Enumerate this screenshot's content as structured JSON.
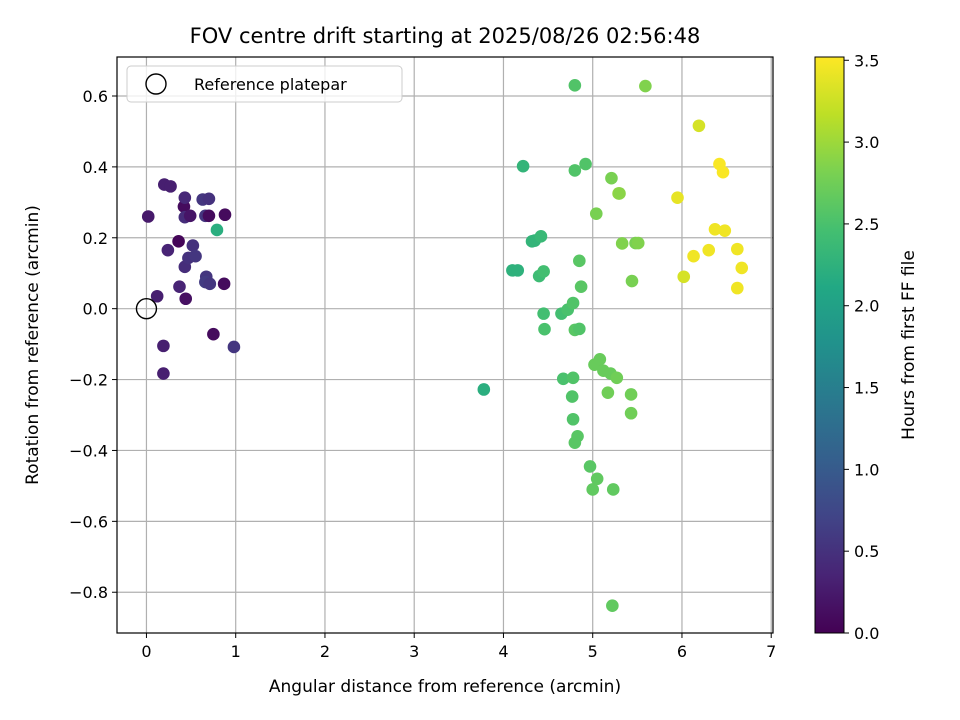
{
  "chart_data": {
    "type": "scatter",
    "title": "FOV centre drift starting at 2025/08/26 02:56:48",
    "xlabel": "Angular distance from reference (arcmin)",
    "ylabel": "Rotation from reference (arcmin)",
    "xlim": [
      -0.33,
      7.02
    ],
    "ylim": [
      -0.915,
      0.71
    ],
    "xticks": [
      "0",
      "1",
      "2",
      "3",
      "4",
      "5",
      "6",
      "7"
    ],
    "yticks": [
      "−0.8",
      "−0.6",
      "−0.4",
      "−0.2",
      "0.0",
      "0.2",
      "0.4",
      "0.6"
    ],
    "xtick_values": [
      0,
      1,
      2,
      3,
      4,
      5,
      6,
      7
    ],
    "ytick_values": [
      -0.8,
      -0.6,
      -0.4,
      -0.2,
      0.0,
      0.2,
      0.4,
      0.6
    ],
    "grid": true,
    "colormap": "viridis",
    "colorbar": {
      "label": "Hours from first FF file",
      "range": [
        0.0,
        3.52
      ],
      "ticks": [
        "0.0",
        "0.5",
        "1.0",
        "1.5",
        "2.0",
        "2.5",
        "3.0",
        "3.5"
      ],
      "tick_values": [
        0.0,
        0.5,
        1.0,
        1.5,
        2.0,
        2.5,
        3.0,
        3.5
      ]
    },
    "legend": {
      "entries": [
        "Reference platepar"
      ],
      "placement": "top-left"
    },
    "reference_point": {
      "x": 0,
      "y": 0
    },
    "points": [
      {
        "x": 0.02,
        "y": 0.26,
        "h": 0.25
      },
      {
        "x": 0.12,
        "y": 0.035,
        "h": 0.3
      },
      {
        "x": 0.2,
        "y": 0.35,
        "h": 0.3
      },
      {
        "x": 0.27,
        "y": 0.345,
        "h": 0.3
      },
      {
        "x": 0.24,
        "y": 0.165,
        "h": 0.35
      },
      {
        "x": 0.19,
        "y": -0.105,
        "h": 0.3
      },
      {
        "x": 0.19,
        "y": -0.183,
        "h": 0.3
      },
      {
        "x": 0.36,
        "y": 0.19,
        "h": 0.05
      },
      {
        "x": 0.37,
        "y": 0.062,
        "h": 0.35
      },
      {
        "x": 0.42,
        "y": 0.288,
        "h": 0.1
      },
      {
        "x": 0.43,
        "y": 0.313,
        "h": 0.4
      },
      {
        "x": 0.43,
        "y": 0.258,
        "h": 0.45
      },
      {
        "x": 0.49,
        "y": 0.262,
        "h": 0.2
      },
      {
        "x": 0.43,
        "y": 0.118,
        "h": 0.45
      },
      {
        "x": 0.47,
        "y": 0.143,
        "h": 0.5
      },
      {
        "x": 0.52,
        "y": 0.178,
        "h": 0.5
      },
      {
        "x": 0.55,
        "y": 0.148,
        "h": 0.55
      },
      {
        "x": 0.44,
        "y": 0.028,
        "h": 0.15
      },
      {
        "x": 0.63,
        "y": 0.308,
        "h": 0.55
      },
      {
        "x": 0.7,
        "y": 0.31,
        "h": 0.5
      },
      {
        "x": 0.66,
        "y": 0.262,
        "h": 0.55
      },
      {
        "x": 0.7,
        "y": 0.262,
        "h": 0.1
      },
      {
        "x": 0.67,
        "y": 0.09,
        "h": 0.55
      },
      {
        "x": 0.66,
        "y": 0.075,
        "h": 0.6
      },
      {
        "x": 0.71,
        "y": 0.07,
        "h": 0.55
      },
      {
        "x": 0.75,
        "y": -0.072,
        "h": 0.1
      },
      {
        "x": 0.79,
        "y": 0.222,
        "h": 2.2
      },
      {
        "x": 0.88,
        "y": 0.265,
        "h": 0.1
      },
      {
        "x": 0.87,
        "y": 0.07,
        "h": 0.1
      },
      {
        "x": 0.98,
        "y": -0.108,
        "h": 0.55
      },
      {
        "x": 3.78,
        "y": -0.228,
        "h": 2.2
      },
      {
        "x": 4.1,
        "y": 0.108,
        "h": 2.25
      },
      {
        "x": 4.16,
        "y": 0.108,
        "h": 2.25
      },
      {
        "x": 4.22,
        "y": 0.402,
        "h": 2.3
      },
      {
        "x": 4.32,
        "y": 0.19,
        "h": 2.3
      },
      {
        "x": 4.35,
        "y": 0.192,
        "h": 2.3
      },
      {
        "x": 4.42,
        "y": 0.204,
        "h": 2.35
      },
      {
        "x": 4.4,
        "y": 0.092,
        "h": 2.4
      },
      {
        "x": 4.45,
        "y": 0.105,
        "h": 2.45
      },
      {
        "x": 4.45,
        "y": -0.014,
        "h": 2.45
      },
      {
        "x": 4.46,
        "y": -0.058,
        "h": 2.5
      },
      {
        "x": 4.65,
        "y": -0.014,
        "h": 2.45
      },
      {
        "x": 4.72,
        "y": -0.003,
        "h": 2.5
      },
      {
        "x": 4.78,
        "y": 0.016,
        "h": 2.55
      },
      {
        "x": 4.67,
        "y": -0.198,
        "h": 2.5
      },
      {
        "x": 4.78,
        "y": -0.195,
        "h": 2.55
      },
      {
        "x": 4.77,
        "y": -0.248,
        "h": 2.55
      },
      {
        "x": 4.78,
        "y": -0.312,
        "h": 2.55
      },
      {
        "x": 4.8,
        "y": -0.06,
        "h": 2.6
      },
      {
        "x": 4.85,
        "y": -0.057,
        "h": 2.55
      },
      {
        "x": 4.8,
        "y": 0.63,
        "h": 2.55
      },
      {
        "x": 4.8,
        "y": 0.39,
        "h": 2.55
      },
      {
        "x": 4.92,
        "y": 0.408,
        "h": 2.55
      },
      {
        "x": 4.85,
        "y": 0.135,
        "h": 2.6
      },
      {
        "x": 4.87,
        "y": 0.062,
        "h": 2.6
      },
      {
        "x": 4.83,
        "y": -0.36,
        "h": 2.6
      },
      {
        "x": 4.8,
        "y": -0.378,
        "h": 2.6
      },
      {
        "x": 4.97,
        "y": -0.445,
        "h": 2.6
      },
      {
        "x": 5.05,
        "y": -0.48,
        "h": 2.65
      },
      {
        "x": 5.0,
        "y": -0.51,
        "h": 2.65
      },
      {
        "x": 5.23,
        "y": -0.51,
        "h": 2.65
      },
      {
        "x": 5.22,
        "y": -0.838,
        "h": 2.65
      },
      {
        "x": 5.02,
        "y": -0.158,
        "h": 2.7
      },
      {
        "x": 5.08,
        "y": -0.143,
        "h": 2.7
      },
      {
        "x": 5.12,
        "y": -0.175,
        "h": 2.7
      },
      {
        "x": 5.2,
        "y": -0.183,
        "h": 2.7
      },
      {
        "x": 5.27,
        "y": -0.195,
        "h": 2.75
      },
      {
        "x": 5.17,
        "y": -0.237,
        "h": 2.75
      },
      {
        "x": 5.43,
        "y": -0.242,
        "h": 2.75
      },
      {
        "x": 5.43,
        "y": -0.295,
        "h": 2.75
      },
      {
        "x": 5.04,
        "y": 0.268,
        "h": 2.8
      },
      {
        "x": 5.21,
        "y": 0.368,
        "h": 2.8
      },
      {
        "x": 5.29,
        "y": 0.325,
        "h": 2.95
      },
      {
        "x": 5.3,
        "y": 0.325,
        "h": 2.9
      },
      {
        "x": 5.33,
        "y": 0.184,
        "h": 2.85
      },
      {
        "x": 5.48,
        "y": 0.185,
        "h": 2.8
      },
      {
        "x": 5.51,
        "y": 0.185,
        "h": 2.85
      },
      {
        "x": 5.44,
        "y": 0.078,
        "h": 2.8
      },
      {
        "x": 5.59,
        "y": 0.628,
        "h": 2.85
      },
      {
        "x": 5.95,
        "y": 0.313,
        "h": 3.4
      },
      {
        "x": 6.02,
        "y": 0.09,
        "h": 3.3
      },
      {
        "x": 6.13,
        "y": 0.148,
        "h": 3.45
      },
      {
        "x": 6.19,
        "y": 0.516,
        "h": 3.3
      },
      {
        "x": 6.3,
        "y": 0.165,
        "h": 3.45
      },
      {
        "x": 6.37,
        "y": 0.224,
        "h": 3.45
      },
      {
        "x": 6.42,
        "y": 0.408,
        "h": 3.5
      },
      {
        "x": 6.46,
        "y": 0.385,
        "h": 3.5
      },
      {
        "x": 6.48,
        "y": 0.22,
        "h": 3.45
      },
      {
        "x": 6.62,
        "y": 0.168,
        "h": 3.45
      },
      {
        "x": 6.62,
        "y": 0.058,
        "h": 3.45
      },
      {
        "x": 6.67,
        "y": 0.115,
        "h": 3.45
      }
    ]
  }
}
